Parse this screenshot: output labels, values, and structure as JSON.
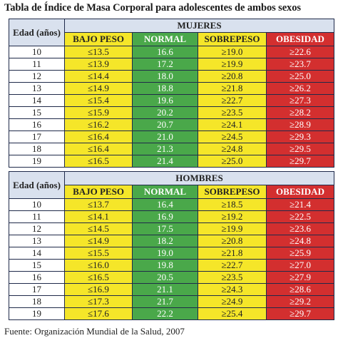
{
  "title": "Tabla de Índice de Masa Corporal para adolescentes de ambos sexos",
  "headers": {
    "edad": "Edad (años)",
    "bajo_peso": "BAJO PESO",
    "normal": "NORMAL",
    "sobrepeso": "SOBREPESO",
    "obesidad": "OBESIDAD"
  },
  "colors": {
    "bajo_peso": "#f5e629",
    "normal": "#4aa84a",
    "sobrepeso": "#f5e629",
    "obesidad": "#d32f2f",
    "header": "#d9e1ee"
  },
  "tables": [
    {
      "sex": "MUJERES",
      "rows": [
        {
          "age": "10",
          "bajo": "≤13.5",
          "normal": "16.6",
          "sobre": "≥19.0",
          "obes": "≥22.6"
        },
        {
          "age": "11",
          "bajo": "≤13.9",
          "normal": "17.2",
          "sobre": "≥19.9",
          "obes": "≥23.7"
        },
        {
          "age": "12",
          "bajo": "≤14.4",
          "normal": "18.0",
          "sobre": "≥20.8",
          "obes": "≥25.0"
        },
        {
          "age": "13",
          "bajo": "≤14.9",
          "normal": "18.8",
          "sobre": "≥21.8",
          "obes": "≥26.2"
        },
        {
          "age": "14",
          "bajo": "≤15.4",
          "normal": "19.6",
          "sobre": "≥22.7",
          "obes": "≥27.3"
        },
        {
          "age": "15",
          "bajo": "≤15.9",
          "normal": "20.2",
          "sobre": "≥23.5",
          "obes": "≥28.2"
        },
        {
          "age": "16",
          "bajo": "≤16.2",
          "normal": "20.7",
          "sobre": "≥24.1",
          "obes": "≥28.9"
        },
        {
          "age": "17",
          "bajo": "≤16.4",
          "normal": "21.0",
          "sobre": "≥24.5",
          "obes": "≥29.3"
        },
        {
          "age": "18",
          "bajo": "≤16.4",
          "normal": "21.3",
          "sobre": "≥24.8",
          "obes": "≥29.5"
        },
        {
          "age": "19",
          "bajo": "≤16.5",
          "normal": "21.4",
          "sobre": "≥25.0",
          "obes": "≥29.7"
        }
      ]
    },
    {
      "sex": "HOMBRES",
      "rows": [
        {
          "age": "10",
          "bajo": "≤13.7",
          "normal": "16.4",
          "sobre": "≥18.5",
          "obes": "≥21.4"
        },
        {
          "age": "11",
          "bajo": "≤14.1",
          "normal": "16.9",
          "sobre": "≥19.2",
          "obes": "≥22.5"
        },
        {
          "age": "12",
          "bajo": "≤14.5",
          "normal": "17.5",
          "sobre": "≥19.9",
          "obes": "≥23.6"
        },
        {
          "age": "13",
          "bajo": "≤14.9",
          "normal": "18.2",
          "sobre": "≥20.8",
          "obes": "≥24.8"
        },
        {
          "age": "14",
          "bajo": "≤15.5",
          "normal": "19.0",
          "sobre": "≥21.8",
          "obes": "≥25.9"
        },
        {
          "age": "15",
          "bajo": "≤16.0",
          "normal": "19.8",
          "sobre": "≥22.7",
          "obes": "≥27.0"
        },
        {
          "age": "16",
          "bajo": "≤16.5",
          "normal": "20.5",
          "sobre": "≥23.5",
          "obes": "≥27.9"
        },
        {
          "age": "17",
          "bajo": "≤16.9",
          "normal": "21.1",
          "sobre": "≥24.3",
          "obes": "≥28.6"
        },
        {
          "age": "18",
          "bajo": "≤17.3",
          "normal": "21.7",
          "sobre": "≥24.9",
          "obes": "≥29.2"
        },
        {
          "age": "19",
          "bajo": "≤17.6",
          "normal": "22.2",
          "sobre": "≥25.4",
          "obes": "≥29.7"
        }
      ]
    }
  ],
  "source": "Fuente: Organización Mundial de la Salud, 2007"
}
